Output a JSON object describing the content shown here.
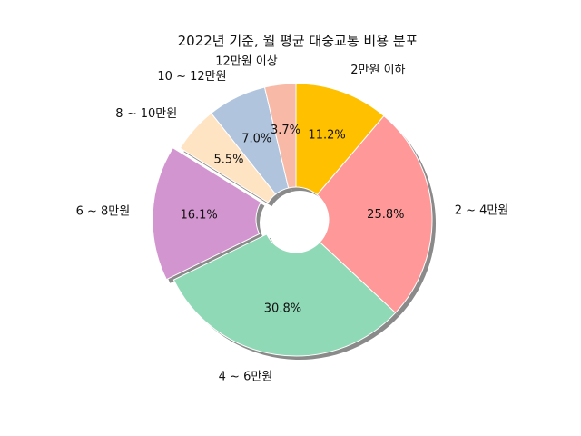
{
  "chart_data": {
    "type": "pie",
    "title": "2022년 기준, 월 평균 대중교통 비용 분포",
    "donut": true,
    "shadow": true,
    "start_angle_deg": 90,
    "direction": "clockwise",
    "categories": [
      "2만원 이하",
      "2 ~ 4만원",
      "4 ~ 6만원",
      "6 ~ 8만원",
      "8 ~ 10만원",
      "10 ~ 12만원",
      "12만원 이상"
    ],
    "values": [
      11.2,
      25.8,
      30.8,
      16.1,
      5.5,
      7.0,
      3.7
    ],
    "value_labels": [
      "11.2%",
      "25.8%",
      "30.8%",
      "16.1%",
      "5.5%",
      "7.0%",
      "3.7%"
    ],
    "colors": [
      "#FFC000",
      "#FF9999",
      "#8FD9B6",
      "#D395D0",
      "#FFE4C4",
      "#B0C4DE",
      "#F8B9A6"
    ],
    "exploded_index": 3
  }
}
